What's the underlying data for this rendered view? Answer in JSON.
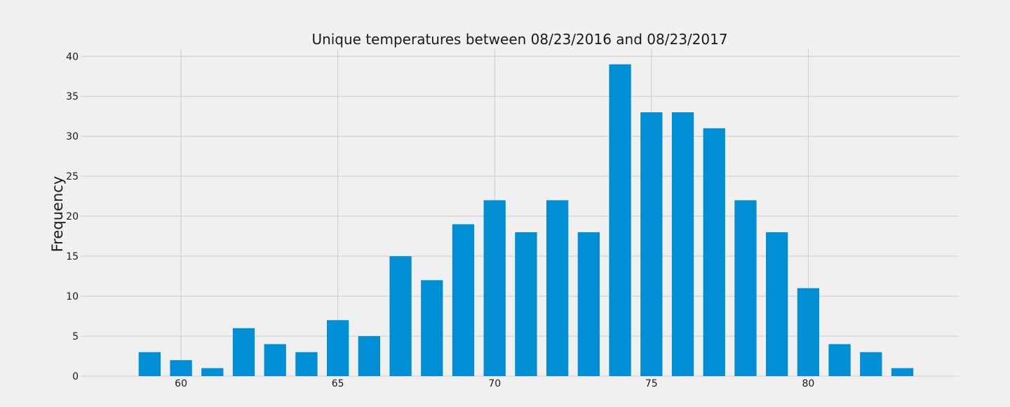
{
  "chart_data": {
    "type": "bar",
    "title": "Unique temperatures between 08/23/2016 and 08/23/2017",
    "xlabel": "",
    "ylabel": "Frequency",
    "x": [
      59,
      60,
      61,
      62,
      63,
      64,
      65,
      66,
      67,
      68,
      69,
      70,
      71,
      72,
      73,
      74,
      75,
      76,
      77,
      78,
      79,
      80,
      81,
      82,
      83
    ],
    "values": [
      3,
      2,
      1,
      6,
      4,
      3,
      7,
      5,
      15,
      12,
      19,
      22,
      18,
      22,
      18,
      39,
      33,
      33,
      31,
      22,
      18,
      11,
      4,
      3,
      1
    ],
    "xticks": [
      60,
      65,
      70,
      75,
      80
    ],
    "yticks": [
      0,
      5,
      10,
      15,
      20,
      25,
      30,
      35,
      40
    ],
    "xlim": [
      56.8,
      84.8
    ],
    "ylim": [
      0,
      40.9
    ],
    "grid": true,
    "bar_color": "#008fd5",
    "background_color": "#f0f0f0",
    "grid_color": "#cbcbcb"
  }
}
